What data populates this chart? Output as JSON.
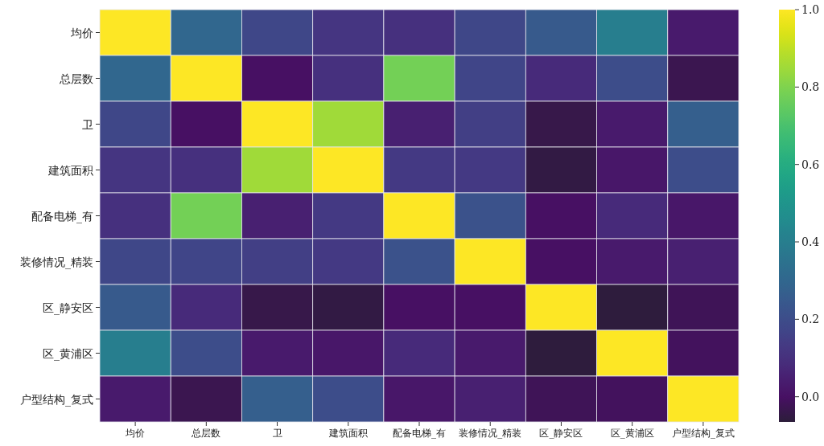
{
  "chart_data": {
    "type": "heatmap",
    "categories": [
      "均价",
      "总层数",
      "卫",
      "建筑面积",
      "配备电梯_有",
      "装修情况_精装",
      "区_静安区",
      "区_黄浦区",
      "户型结构_复式"
    ],
    "y_categories": [
      "均价",
      "总层数",
      "卫",
      "建筑面积",
      "配备电梯_有",
      "装修情况_精装",
      "区_静安区",
      "区_黄浦区",
      "户型结构_复式"
    ],
    "cells": [
      [
        1,
        0.3,
        0.18,
        0.12,
        0.1,
        0.18,
        0.25,
        0.4,
        0.03
      ],
      [
        0.3,
        1,
        0.0,
        0.1,
        0.78,
        0.17,
        0.08,
        0.2,
        -0.03
      ],
      [
        0.18,
        0.0,
        1,
        0.85,
        0.05,
        0.15,
        -0.04,
        0.03,
        0.27
      ],
      [
        0.12,
        0.1,
        0.85,
        1,
        0.13,
        0.13,
        -0.05,
        0.02,
        0.2
      ],
      [
        0.1,
        0.78,
        0.05,
        0.13,
        1,
        0.22,
        0.0,
        0.08,
        0.02
      ],
      [
        0.18,
        0.17,
        0.15,
        0.13,
        0.22,
        1,
        0.0,
        0.03,
        0.05
      ],
      [
        0.25,
        0.08,
        -0.04,
        -0.05,
        0.0,
        0.0,
        1,
        -0.06,
        -0.02
      ],
      [
        0.4,
        0.2,
        0.03,
        0.02,
        0.08,
        0.03,
        -0.06,
        1,
        -0.01
      ],
      [
        0.03,
        -0.03,
        0.27,
        0.2,
        0.02,
        0.05,
        -0.02,
        -0.01,
        1
      ]
    ],
    "clim": [
      -0.065,
      1.0
    ],
    "cticks": [
      {
        "value": 0,
        "label": "0.0"
      },
      0.2,
      0.4,
      0.6,
      0.8,
      {
        "value": 1,
        "label": "1.0"
      }
    ]
  }
}
